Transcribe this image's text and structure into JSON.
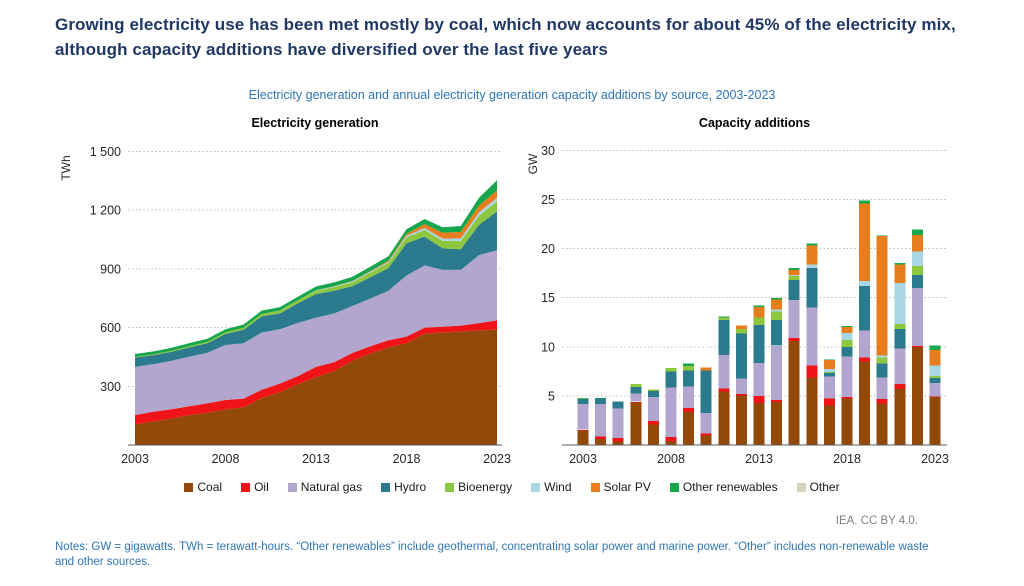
{
  "page": {
    "title": "Growing electricity use has been met mostly by coal, which now accounts for about 45% of the electricity mix, although capacity additions have diversified over the last five years",
    "subtitle": "Electricity generation and annual electricity generation capacity additions by source, 2003-2023",
    "attribution": "IEA. CC BY 4.0.",
    "notes": "Notes: GW = gigawatts. TWh = terawatt-hours. “Other renewables” include geothermal, concentrating solar power and marine power. “Other” includes non-renewable waste and other sources."
  },
  "legend": {
    "position": "bottom",
    "items": [
      {
        "label": "Coal",
        "color": "#92490A"
      },
      {
        "label": "Oil",
        "color": "#F01418"
      },
      {
        "label": "Natural gas",
        "color": "#B3A6CE"
      },
      {
        "label": "Hydro",
        "color": "#2C7A8D"
      },
      {
        "label": "Bioenergy",
        "color": "#8DC63F"
      },
      {
        "label": "Wind",
        "color": "#A9D6E5"
      },
      {
        "label": "Solar PV",
        "color": "#E87D1E"
      },
      {
        "label": "Other renewables",
        "color": "#16A74C"
      },
      {
        "label": "Other",
        "color": "#D6D2BE"
      }
    ]
  },
  "chart_data": [
    {
      "type": "area",
      "title": "Electricity generation",
      "ylabel": "TWh",
      "ylim": [
        0,
        1500
      ],
      "yticks": [
        300,
        600,
        900,
        1200,
        1500
      ],
      "ytick_labels": [
        "300",
        "600",
        "900",
        "1 200",
        "1 500"
      ],
      "grid": "dotted",
      "x": [
        2003,
        2004,
        2005,
        2006,
        2007,
        2008,
        2009,
        2010,
        2011,
        2012,
        2013,
        2014,
        2015,
        2016,
        2017,
        2018,
        2019,
        2020,
        2021,
        2022,
        2023
      ],
      "xticks": [
        2003,
        2008,
        2013,
        2018,
        2023
      ],
      "series": [
        {
          "name": "Coal",
          "values": [
            105,
            120,
            135,
            152,
            165,
            182,
            192,
            240,
            270,
            310,
            347,
            378,
            430,
            467,
            500,
            520,
            568,
            575,
            580,
            585,
            590
          ]
        },
        {
          "name": "Oil",
          "values": [
            48,
            50,
            48,
            46,
            48,
            48,
            45,
            42,
            44,
            42,
            52,
            45,
            40,
            38,
            35,
            34,
            32,
            30,
            30,
            38,
            47
          ]
        },
        {
          "name": "Natural gas",
          "values": [
            246,
            243,
            247,
            253,
            258,
            281,
            283,
            293,
            278,
            272,
            251,
            249,
            240,
            243,
            253,
            312,
            318,
            290,
            285,
            347,
            358
          ]
        },
        {
          "name": "Hydro",
          "values": [
            48,
            46,
            46,
            48,
            49,
            57,
            69,
            83,
            80,
            100,
            121,
            116,
            101,
            109,
            116,
            165,
            147,
            110,
            105,
            155,
            199
          ]
        },
        {
          "name": "Bioenergy",
          "values": [
            3,
            4,
            5,
            6,
            7,
            8,
            10,
            12,
            14,
            15,
            17,
            19,
            21,
            24,
            27,
            30,
            34,
            38,
            42,
            47,
            52
          ]
        },
        {
          "name": "Wind",
          "values": [
            0,
            0,
            0,
            0,
            0,
            0,
            0,
            0,
            1,
            1,
            2,
            3,
            4,
            5,
            6,
            8,
            10,
            12,
            14,
            16,
            18
          ]
        },
        {
          "name": "Solar PV",
          "values": [
            0,
            0,
            0,
            0,
            0,
            0,
            0,
            0,
            0,
            0,
            1,
            1,
            2,
            3,
            5,
            10,
            20,
            30,
            33,
            35,
            38
          ]
        },
        {
          "name": "Other renewables",
          "values": [
            15,
            15,
            15,
            16,
            16,
            16,
            17,
            17,
            18,
            18,
            19,
            20,
            21,
            22,
            23,
            24,
            26,
            28,
            30,
            40,
            51
          ]
        }
      ]
    },
    {
      "type": "bar",
      "title": "Capacity additions",
      "ylabel": "GW",
      "ylim": [
        0,
        30
      ],
      "yticks": [
        5,
        10,
        15,
        20,
        25,
        30
      ],
      "ytick_labels": [
        "5",
        "10",
        "15",
        "20",
        "25",
        "30"
      ],
      "grid": "dotted",
      "x": [
        2003,
        2004,
        2005,
        2006,
        2007,
        2008,
        2009,
        2010,
        2011,
        2012,
        2013,
        2014,
        2015,
        2016,
        2017,
        2018,
        2019,
        2020,
        2021,
        2022,
        2023
      ],
      "xticks": [
        2003,
        2008,
        2013,
        2018,
        2023
      ],
      "series": [
        {
          "name": "Coal",
          "values": [
            1.5,
            0.6,
            0.35,
            4.35,
            2.1,
            0.4,
            3.35,
            0.95,
            5.45,
            5.05,
            4.3,
            4.4,
            10.6,
            6.85,
            4.0,
            4.75,
            8.5,
            4.2,
            5.7,
            10.0,
            4.9
          ]
        },
        {
          "name": "Oil",
          "values": [
            0.05,
            0.25,
            0.35,
            0.05,
            0.35,
            0.4,
            0.4,
            0.2,
            0.3,
            0.15,
            0.7,
            0.2,
            0.3,
            1.25,
            0.75,
            0.15,
            0.4,
            0.5,
            0.5,
            0.1,
            0.05
          ]
        },
        {
          "name": "Natural gas",
          "values": [
            2.6,
            3.3,
            3.0,
            0.85,
            2.45,
            5.05,
            2.2,
            2.1,
            3.4,
            1.55,
            3.35,
            5.5,
            3.85,
            5.9,
            2.2,
            4.1,
            2.75,
            2.2,
            3.6,
            5.9,
            1.35
          ]
        },
        {
          "name": "Hydro",
          "values": [
            0.55,
            0.6,
            0.75,
            0.65,
            0.6,
            1.65,
            1.65,
            4.35,
            3.55,
            4.6,
            3.85,
            2.6,
            2.05,
            4.0,
            0.4,
            1.0,
            4.55,
            1.4,
            2.0,
            1.3,
            0.5
          ]
        },
        {
          "name": "Bioenergy",
          "values": [
            0.05,
            0,
            0,
            0.3,
            0.15,
            0.35,
            0.45,
            0,
            0.3,
            0.45,
            0.8,
            0.9,
            0.4,
            0,
            0.1,
            0.7,
            0,
            0.6,
            0.5,
            0.9,
            0.2
          ]
        },
        {
          "name": "Wind",
          "values": [
            0,
            0,
            0,
            0,
            0,
            0,
            0,
            0,
            0,
            0,
            0,
            0.2,
            0.1,
            0.4,
            0.3,
            0.7,
            0.5,
            0.2,
            4.2,
            1.5,
            1.1
          ]
        },
        {
          "name": "Solar PV",
          "values": [
            0,
            0,
            0,
            0,
            0,
            0,
            0,
            0.3,
            0,
            0.35,
            1.05,
            1.0,
            0.5,
            1.9,
            0.9,
            0.6,
            7.9,
            12.2,
            1.9,
            1.7,
            1.55
          ]
        },
        {
          "name": "Other renewables",
          "values": [
            0.05,
            0.05,
            0,
            0,
            0,
            0,
            0.25,
            0,
            0.1,
            0,
            0.15,
            0.15,
            0.2,
            0.2,
            0.05,
            0.1,
            0.3,
            0.05,
            0.15,
            0.55,
            0.5
          ]
        }
      ]
    }
  ]
}
